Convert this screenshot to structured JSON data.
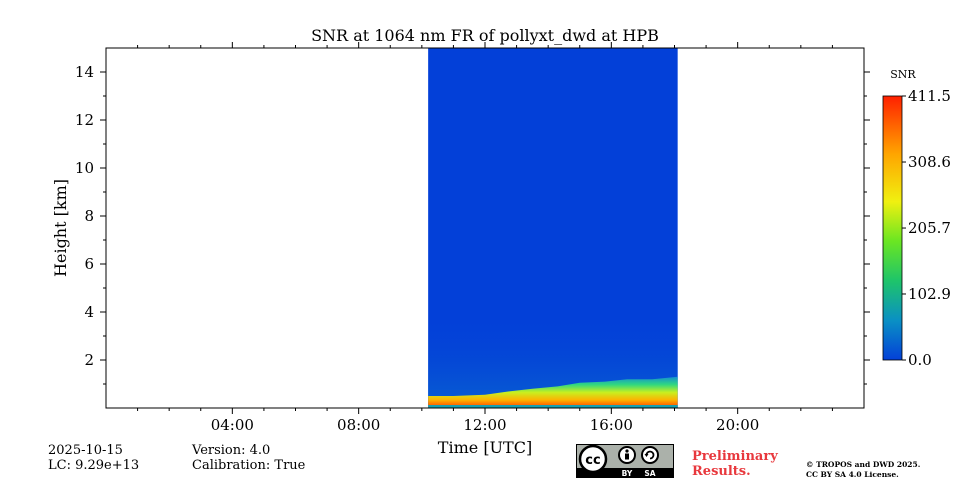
{
  "chart_data": {
    "type": "heatmap",
    "title": "SNR at 1064 nm FR of pollyxt_dwd at HPB",
    "xlabel": "Time [UTC]",
    "ylabel": "Height [km]",
    "x_tick_labels": [
      "04:00",
      "08:00",
      "12:00",
      "16:00",
      "20:00"
    ],
    "x_ticks_hours": [
      4,
      8,
      12,
      16,
      20
    ],
    "xlim_hours": [
      0,
      24
    ],
    "y_ticks": [
      2,
      4,
      6,
      8,
      10,
      12,
      14
    ],
    "ylim": [
      0,
      15
    ],
    "data_window_hours": [
      10.2,
      18.1
    ],
    "boundary_layer_top_km": [
      0.5,
      0.5,
      0.55,
      0.7,
      0.8,
      0.9,
      1.05,
      1.1,
      1.2,
      1.2,
      1.3
    ],
    "boundary_layer_time_hours": [
      10.2,
      11.0,
      12.0,
      12.8,
      13.5,
      14.3,
      15.0,
      15.8,
      16.5,
      17.3,
      18.1
    ],
    "colorbar": {
      "label": "SNR",
      "min": 0.0,
      "max": 411.5,
      "ticks": [
        "0.0",
        "102.9",
        "205.7",
        "308.6",
        "411.5"
      ],
      "tick_values": [
        0.0,
        102.9,
        205.7,
        308.6,
        411.5
      ],
      "colors": [
        "#0340d8",
        "#0a90c4",
        "#1ec46a",
        "#6ae622",
        "#f0f010",
        "#ffa500",
        "#ff2000"
      ]
    }
  },
  "footer": {
    "date": "2025-10-15",
    "lc": "LC: 9.29e+13",
    "version": "Version: 4.0",
    "calibration": "Calibration: True",
    "preliminary_line1": "Preliminary",
    "preliminary_line2": "Results.",
    "copyright_line1": "© TROPOS and DWD 2025.",
    "copyright_line2": "CC BY SA 4.0 License.",
    "badge_cc": "cc",
    "badge_by": "BY",
    "badge_sa": "SA"
  }
}
